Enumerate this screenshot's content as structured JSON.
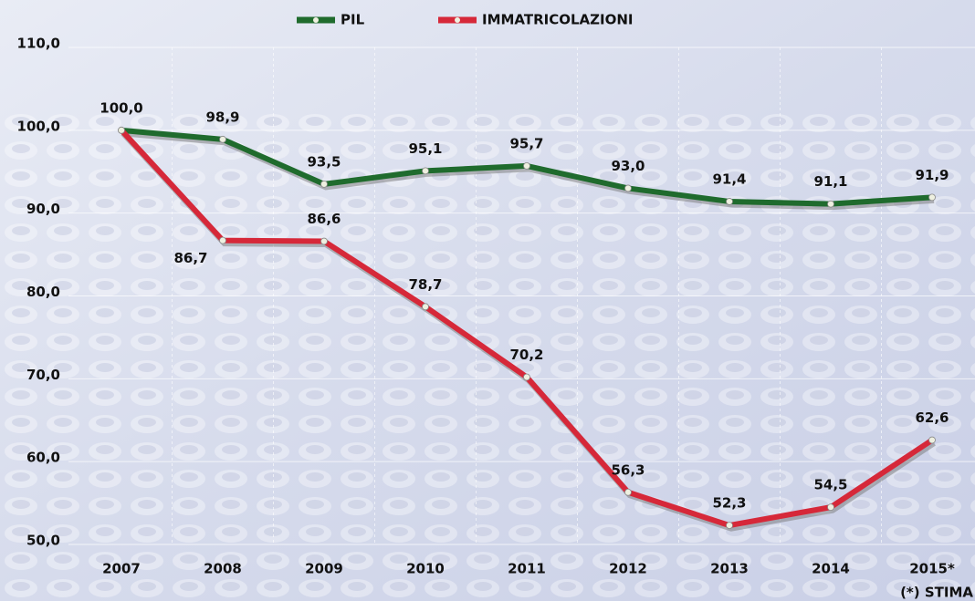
{
  "chart_data": {
    "type": "line",
    "categories": [
      "2007",
      "2008",
      "2009",
      "2010",
      "2011",
      "2012",
      "2013",
      "2014",
      "2015*"
    ],
    "series": [
      {
        "name": "PIL",
        "color": "#1f6b2d",
        "values": [
          100.0,
          98.9,
          93.5,
          95.1,
          95.7,
          93.0,
          91.4,
          91.1,
          91.9
        ],
        "value_labels": [
          "100,0",
          "98,9",
          "93,5",
          "95,1",
          "95,7",
          "93,0",
          "91,4",
          "91,1",
          "91,9"
        ]
      },
      {
        "name": "IMMATRICOLAZIONI",
        "color": "#d62839",
        "values": [
          100.0,
          86.7,
          86.6,
          78.7,
          70.2,
          56.3,
          52.3,
          54.5,
          62.6
        ],
        "value_labels": [
          null,
          "86,7",
          "86,6",
          "78,7",
          "70,2",
          "56,3",
          "52,3",
          "54,5",
          "62,6"
        ]
      }
    ],
    "ylim": [
      50,
      110
    ],
    "yticks": [
      {
        "value": 50,
        "label": "50,0"
      },
      {
        "value": 60,
        "label": "60,0"
      },
      {
        "value": 70,
        "label": "70,0"
      },
      {
        "value": 80,
        "label": "80,0"
      },
      {
        "value": 90,
        "label": "90,0"
      },
      {
        "value": 100,
        "label": "100,0"
      },
      {
        "value": 110,
        "label": "110,0"
      }
    ],
    "grid": true,
    "legend": "top",
    "note": "(*) STIMA"
  }
}
